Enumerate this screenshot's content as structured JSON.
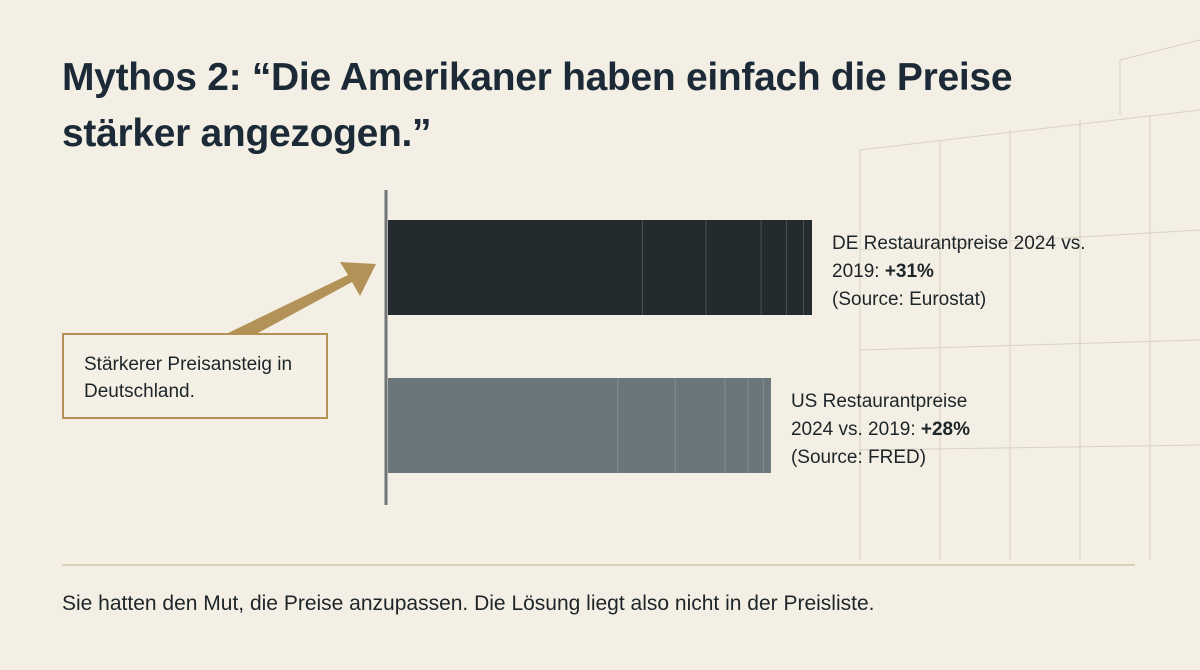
{
  "chart_data": {
    "type": "bar",
    "orientation": "horizontal",
    "title": "Mythos 2: “Die Amerikaner haben einfach die Preise stärker angezogen.”",
    "categories": [
      "DE Restaurantpreise 2024 vs. 2019:",
      "US Restaurantpreise 2024 vs. 2019:"
    ],
    "values": [
      31,
      28
    ],
    "value_labels": [
      "+31%",
      "+28%"
    ],
    "sources": [
      "(Source: Eurostat)",
      "(Source: FRED)"
    ],
    "colors": [
      "#232b2e",
      "#6b767b"
    ],
    "annotation": "Stärkerer Preisansteig in Deutschland.",
    "footnote": "Sie hatten den Mut, die Preise anzupassen. Die Lösung liegt also nicht in der Preisliste."
  }
}
